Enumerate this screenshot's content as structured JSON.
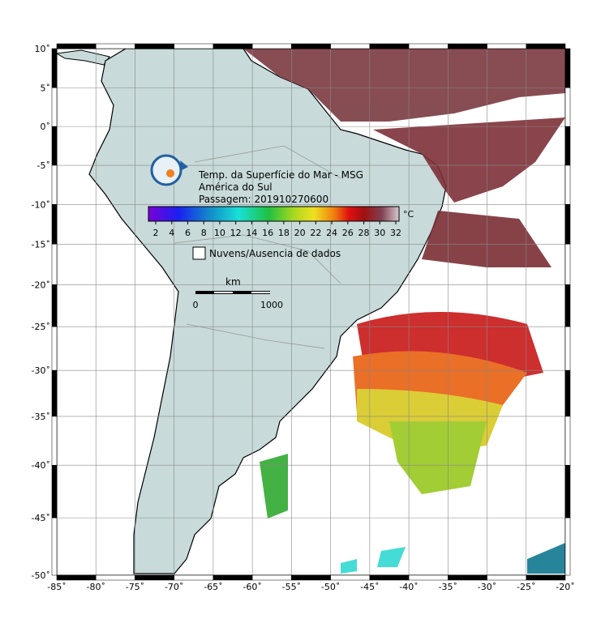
{
  "map": {
    "title_lines": [
      "Temp. da Superfície do Mar - MSG",
      "América do Sul",
      "Passagem: 201910270600"
    ],
    "colorbar": {
      "unit": "°C",
      "ticks": [
        2,
        4,
        6,
        8,
        10,
        12,
        14,
        16,
        18,
        20,
        22,
        24,
        26,
        28,
        30,
        32
      ]
    },
    "legend": {
      "label": "Nuvens/Ausencia de dados"
    },
    "scale_bar": {
      "unit": "km",
      "start": 0,
      "end": 1000
    },
    "lon_ticks": [
      {
        "value": -85,
        "label": "-85˚"
      },
      {
        "value": -80,
        "label": "-80˚"
      },
      {
        "value": -75,
        "label": "-75˚"
      },
      {
        "value": -70,
        "label": "-70˚"
      },
      {
        "value": -65,
        "label": "-65˚"
      },
      {
        "value": -60,
        "label": "-60˚"
      },
      {
        "value": -55,
        "label": "-55˚"
      },
      {
        "value": -50,
        "label": "-50˚"
      },
      {
        "value": -45,
        "label": "-45˚"
      },
      {
        "value": -40,
        "label": "-40˚"
      },
      {
        "value": -35,
        "label": "-35˚"
      },
      {
        "value": -30,
        "label": "-30˚"
      },
      {
        "value": -25,
        "label": "-25˚"
      },
      {
        "value": -20,
        "label": "-20˚"
      }
    ],
    "lat_ticks": [
      {
        "value": 10,
        "label": "10˚"
      },
      {
        "value": 5,
        "label": "5˚"
      },
      {
        "value": 0,
        "label": "0˚"
      },
      {
        "value": -5,
        "label": "-5˚"
      },
      {
        "value": -10,
        "label": "-10˚"
      },
      {
        "value": -15,
        "label": "-15˚"
      },
      {
        "value": -20,
        "label": "-20˚"
      },
      {
        "value": -25,
        "label": "-25˚"
      },
      {
        "value": -30,
        "label": "-30˚"
      },
      {
        "value": -35,
        "label": "-35˚"
      },
      {
        "value": -40,
        "label": "-40˚"
      },
      {
        "value": -45,
        "label": "-45˚"
      },
      {
        "value": -50,
        "label": "-50˚"
      }
    ]
  }
}
